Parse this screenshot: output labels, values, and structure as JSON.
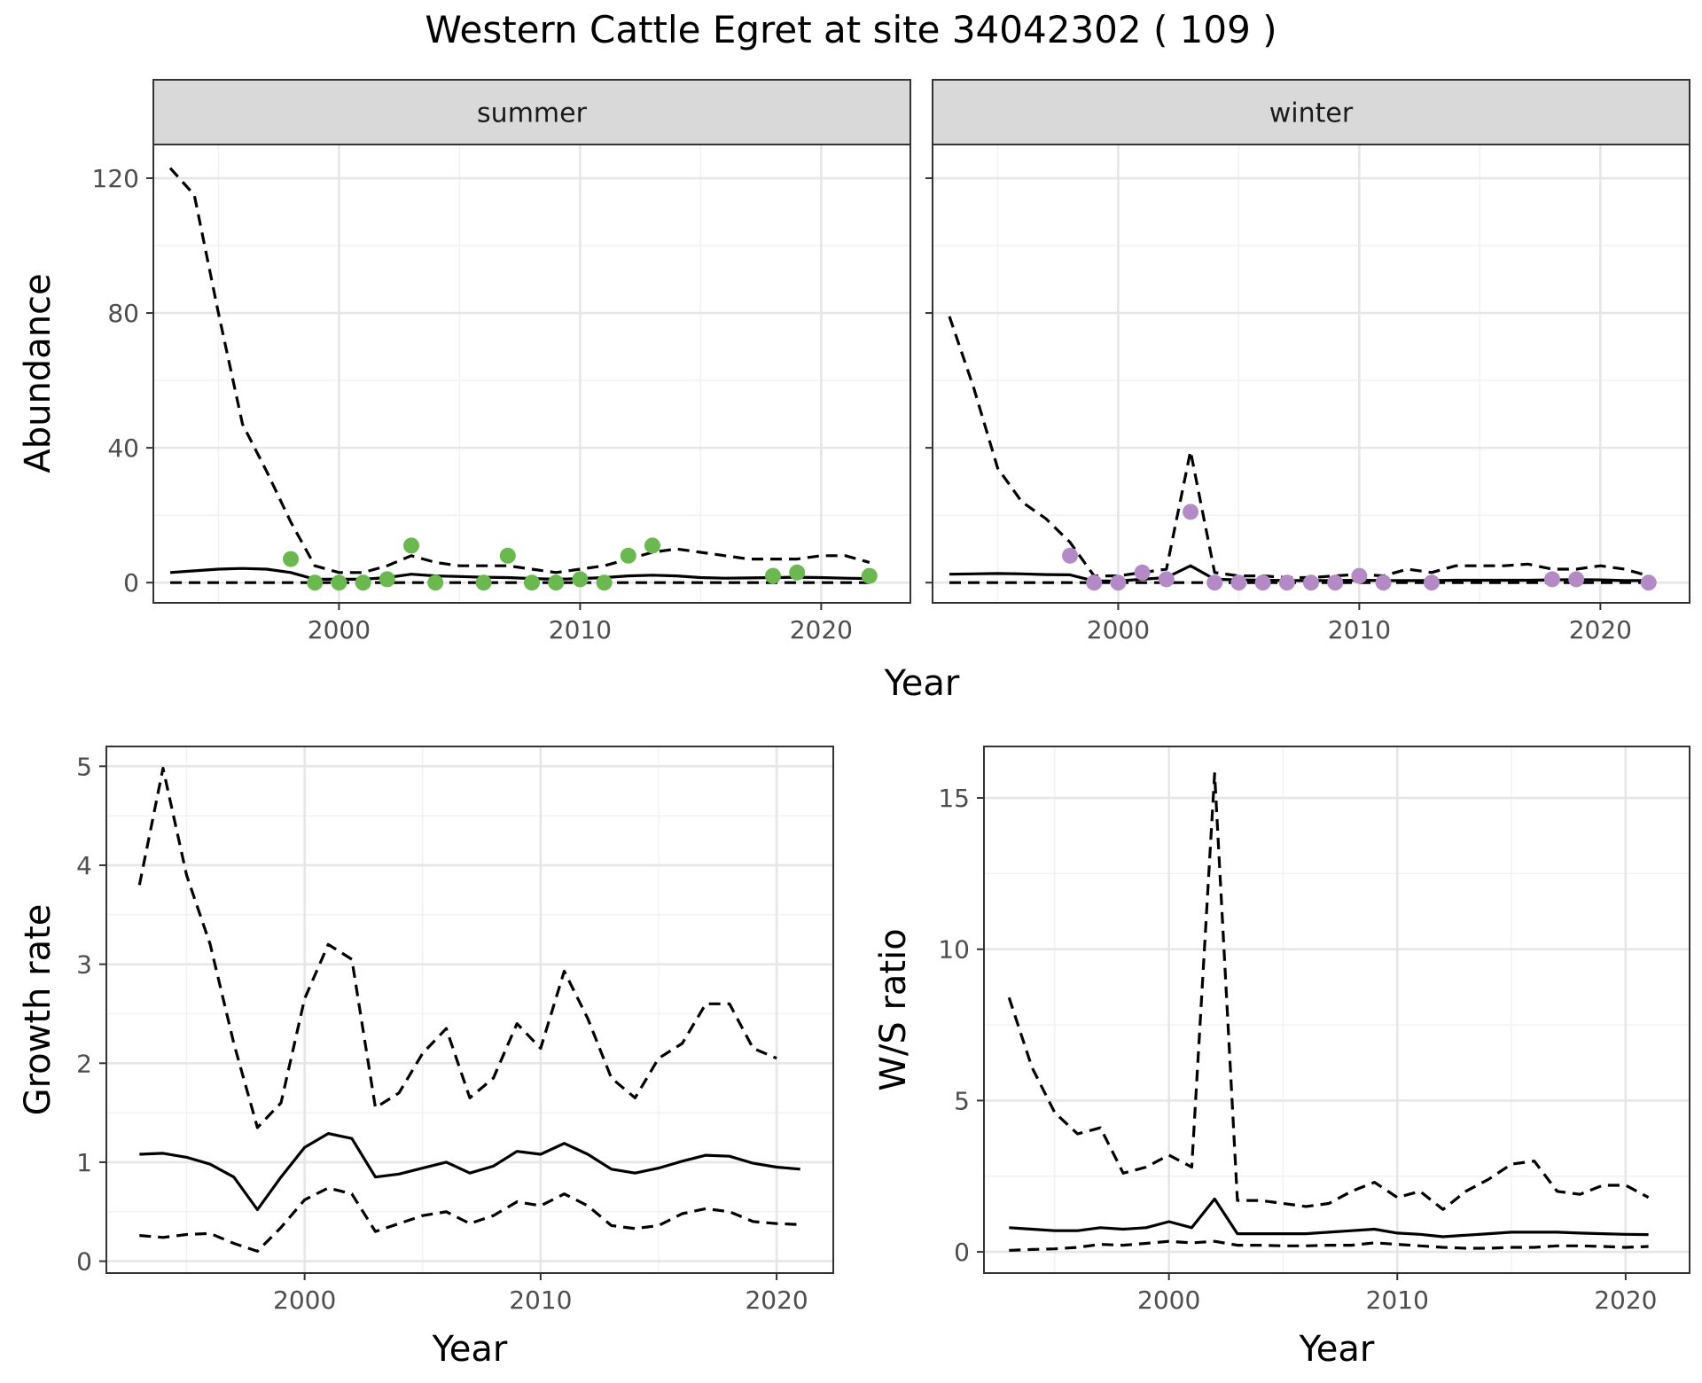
{
  "title": "Western Cattle Egret at site 34042302 ( 109 )",
  "colors": {
    "summer_points": "#6ab84f",
    "winter_points": "#b48ac6",
    "lines": "#000000",
    "strip": "#d9d9d9"
  },
  "chart_data": [
    {
      "type": "line",
      "facet": "summer",
      "xlabel": "Year",
      "ylabel": "Abundance",
      "xlim": [
        1992.3,
        2023.7
      ],
      "ylim": [
        -6,
        130
      ],
      "xticks": [
        2000,
        2010,
        2020
      ],
      "yticks": [
        0,
        40,
        80,
        120
      ],
      "grid": true,
      "series": [
        {
          "style": "solid",
          "x": [
            1993,
            1994,
            1995,
            1996,
            1997,
            1998,
            1999,
            2000,
            2001,
            2002,
            2003,
            2004,
            2005,
            2006,
            2007,
            2008,
            2009,
            2010,
            2011,
            2012,
            2013,
            2014,
            2015,
            2016,
            2017,
            2018,
            2019,
            2020,
            2021,
            2022
          ],
          "values": [
            3,
            3.5,
            4,
            4.2,
            4,
            3,
            1,
            1,
            1,
            1.5,
            2.5,
            2,
            1.8,
            1.6,
            1.5,
            1.2,
            1,
            1.2,
            1.5,
            2,
            2.2,
            2,
            1.5,
            1.3,
            1.4,
            1.5,
            1.6,
            1.5,
            1.3,
            1.2
          ]
        },
        {
          "style": "dashed",
          "x": [
            1993,
            1994,
            1995,
            1996,
            1997,
            1998,
            1999,
            2000,
            2001,
            2002,
            2003,
            2004,
            2005,
            2006,
            2007,
            2008,
            2009,
            2010,
            2011,
            2012,
            2013,
            2014,
            2015,
            2016,
            2017,
            2018,
            2019,
            2020,
            2021,
            2022
          ],
          "values": [
            123,
            115,
            80,
            47,
            33,
            18,
            5,
            3,
            3,
            5,
            8,
            6,
            5,
            5,
            5,
            4,
            3,
            4,
            5,
            7,
            9,
            10,
            9,
            8,
            7,
            7,
            7,
            8,
            8,
            6
          ]
        },
        {
          "style": "dashed",
          "x": [
            1993,
            2022
          ],
          "values": [
            0,
            0
          ]
        },
        {
          "style": "points",
          "x": [
            1998,
            1999,
            2000,
            2001,
            2002,
            2003,
            2004,
            2006,
            2007,
            2008,
            2009,
            2010,
            2011,
            2012,
            2013,
            2018,
            2019,
            2022
          ],
          "values": [
            7,
            0,
            0,
            0,
            1,
            11,
            0,
            0,
            8,
            0,
            0,
            1,
            0,
            8,
            11,
            2,
            3,
            2
          ]
        }
      ]
    },
    {
      "type": "line",
      "facet": "winter",
      "xlabel": "Year",
      "ylabel": "Abundance",
      "xlim": [
        1992.3,
        2023.7
      ],
      "ylim": [
        -6,
        130
      ],
      "xticks": [
        2000,
        2010,
        2020
      ],
      "yticks": [
        0,
        40,
        80,
        120
      ],
      "grid": true,
      "series": [
        {
          "style": "solid",
          "x": [
            1993,
            1994,
            1995,
            1996,
            1997,
            1998,
            1999,
            2000,
            2001,
            2002,
            2003,
            2004,
            2005,
            2006,
            2007,
            2008,
            2009,
            2010,
            2011,
            2012,
            2013,
            2014,
            2015,
            2016,
            2017,
            2018,
            2019,
            2020,
            2021,
            2022
          ],
          "values": [
            2.5,
            2.6,
            2.7,
            2.6,
            2.4,
            2.3,
            0.5,
            0.5,
            1,
            1.5,
            5,
            1,
            0.8,
            0.7,
            0.6,
            0.6,
            0.6,
            0.7,
            0.6,
            0.6,
            0.6,
            0.7,
            0.7,
            0.7,
            0.7,
            0.8,
            0.9,
            0.8,
            0.6,
            0.6
          ]
        },
        {
          "style": "dashed",
          "x": [
            1993,
            1994,
            1995,
            1996,
            1997,
            1998,
            1999,
            2000,
            2001,
            2002,
            2003,
            2004,
            2005,
            2006,
            2007,
            2008,
            2009,
            2010,
            2011,
            2012,
            2013,
            2014,
            2015,
            2016,
            2017,
            2018,
            2019,
            2020,
            2021,
            2022
          ],
          "values": [
            79,
            58,
            34,
            24,
            19,
            12,
            2,
            2,
            3,
            4,
            39,
            3,
            2,
            2,
            1.5,
            1.5,
            2,
            2.5,
            2,
            4,
            3,
            5,
            5,
            5,
            5.5,
            4,
            4,
            5,
            4,
            2
          ]
        },
        {
          "style": "dashed",
          "x": [
            1993,
            2022
          ],
          "values": [
            0,
            0
          ]
        },
        {
          "style": "points",
          "x": [
            1998,
            1999,
            2000,
            2001,
            2002,
            2003,
            2004,
            2005,
            2006,
            2007,
            2008,
            2009,
            2010,
            2011,
            2013,
            2018,
            2019,
            2022
          ],
          "values": [
            8,
            0,
            0,
            3,
            1,
            21,
            0,
            0,
            0,
            0,
            0,
            0,
            2,
            0,
            0,
            1,
            1,
            0
          ]
        }
      ]
    },
    {
      "type": "line",
      "facet": "",
      "xlabel": "Year",
      "ylabel": "Growth rate",
      "xlim": [
        1991.6,
        2022.4
      ],
      "ylim": [
        -0.12,
        5.2
      ],
      "xticks": [
        2000,
        2010,
        2020
      ],
      "yticks": [
        0,
        1,
        2,
        3,
        4,
        5
      ],
      "grid": true,
      "series": [
        {
          "style": "solid",
          "x": [
            1993,
            1994,
            1995,
            1996,
            1997,
            1998,
            1999,
            2000,
            2001,
            2002,
            2003,
            2004,
            2005,
            2006,
            2007,
            2008,
            2009,
            2010,
            2011,
            2012,
            2013,
            2014,
            2015,
            2016,
            2017,
            2018,
            2019,
            2020,
            2021
          ],
          "values": [
            1.08,
            1.09,
            1.05,
            0.98,
            0.85,
            0.52,
            0.85,
            1.15,
            1.29,
            1.24,
            0.85,
            0.88,
            0.94,
            1.0,
            0.89,
            0.96,
            1.11,
            1.08,
            1.19,
            1.08,
            0.93,
            0.89,
            0.94,
            1.01,
            1.07,
            1.06,
            0.99,
            0.95,
            0.93
          ]
        },
        {
          "style": "dashed",
          "x": [
            1993,
            1994,
            1995,
            1996,
            1997,
            1998,
            1999,
            2000,
            2001,
            2002,
            2003,
            2004,
            2005,
            2006,
            2007,
            2008,
            2009,
            2010,
            2011,
            2012,
            2013,
            2014,
            2015,
            2016,
            2017,
            2018,
            2019,
            2020,
            2021
          ],
          "values": [
            3.8,
            4.98,
            3.9,
            3.2,
            2.2,
            1.35,
            1.6,
            2.65,
            3.2,
            3.05,
            1.55,
            1.7,
            2.1,
            2.35,
            1.65,
            1.85,
            2.4,
            2.15,
            2.93,
            2.45,
            1.85,
            1.65,
            2.05,
            2.2,
            2.6,
            2.6,
            2.15,
            2.05,
            null
          ]
        },
        {
          "style": "dashed",
          "x": [
            1993,
            1994,
            1995,
            1996,
            1997,
            1998,
            1999,
            2000,
            2001,
            2002,
            2003,
            2004,
            2005,
            2006,
            2007,
            2008,
            2009,
            2010,
            2011,
            2012,
            2013,
            2014,
            2015,
            2016,
            2017,
            2018,
            2019,
            2020,
            2021
          ],
          "values": [
            0.26,
            0.24,
            0.27,
            0.28,
            0.18,
            0.1,
            0.34,
            0.62,
            0.74,
            0.68,
            0.3,
            0.38,
            0.46,
            0.5,
            0.38,
            0.46,
            0.6,
            0.56,
            0.68,
            0.56,
            0.36,
            0.33,
            0.36,
            0.48,
            0.53,
            0.5,
            0.4,
            0.38,
            0.37
          ]
        }
      ]
    },
    {
      "type": "line",
      "facet": "",
      "xlabel": "Year",
      "ylabel": "W/S ratio",
      "xlim": [
        1991.9,
        2022.8
      ],
      "ylim": [
        -0.7,
        16.7
      ],
      "xticks": [
        2000,
        2010,
        2020
      ],
      "yticks": [
        0,
        5,
        10,
        15
      ],
      "grid": true,
      "series": [
        {
          "style": "solid",
          "x": [
            1993,
            1994,
            1995,
            1996,
            1997,
            1998,
            1999,
            2000,
            2001,
            2002,
            2003,
            2004,
            2005,
            2006,
            2007,
            2008,
            2009,
            2010,
            2011,
            2012,
            2013,
            2014,
            2015,
            2016,
            2017,
            2018,
            2019,
            2020,
            2021
          ],
          "values": [
            0.8,
            0.75,
            0.7,
            0.7,
            0.8,
            0.75,
            0.8,
            1.0,
            0.8,
            1.75,
            0.6,
            0.6,
            0.6,
            0.6,
            0.65,
            0.7,
            0.75,
            0.62,
            0.58,
            0.5,
            0.55,
            0.6,
            0.65,
            0.65,
            0.65,
            0.62,
            0.6,
            0.58,
            0.57
          ]
        },
        {
          "style": "dashed",
          "x": [
            1993,
            1994,
            1995,
            1996,
            1997,
            1998,
            1999,
            2000,
            2001,
            2002,
            2003,
            2004,
            2005,
            2006,
            2007,
            2008,
            2009,
            2010,
            2011,
            2012,
            2013,
            2014,
            2015,
            2016,
            2017,
            2018,
            2019,
            2020,
            2021
          ],
          "values": [
            8.4,
            6.1,
            4.6,
            3.9,
            4.1,
            2.6,
            2.8,
            3.2,
            2.8,
            15.8,
            1.7,
            1.7,
            1.6,
            1.5,
            1.6,
            2.0,
            2.3,
            1.8,
            2.0,
            1.4,
            2.0,
            2.4,
            2.9,
            3.0,
            2.0,
            1.9,
            2.2,
            2.2,
            1.8
          ]
        },
        {
          "style": "dashed",
          "x": [
            1993,
            1994,
            1995,
            1996,
            1997,
            1998,
            1999,
            2000,
            2001,
            2002,
            2003,
            2004,
            2005,
            2006,
            2007,
            2008,
            2009,
            2010,
            2011,
            2012,
            2013,
            2014,
            2015,
            2016,
            2017,
            2018,
            2019,
            2020,
            2021
          ],
          "values": [
            0.05,
            0.08,
            0.1,
            0.15,
            0.25,
            0.22,
            0.28,
            0.35,
            0.3,
            0.35,
            0.22,
            0.22,
            0.2,
            0.2,
            0.22,
            0.22,
            0.3,
            0.25,
            0.2,
            0.15,
            0.12,
            0.12,
            0.15,
            0.15,
            0.2,
            0.2,
            0.18,
            0.15,
            0.18
          ]
        }
      ]
    }
  ]
}
